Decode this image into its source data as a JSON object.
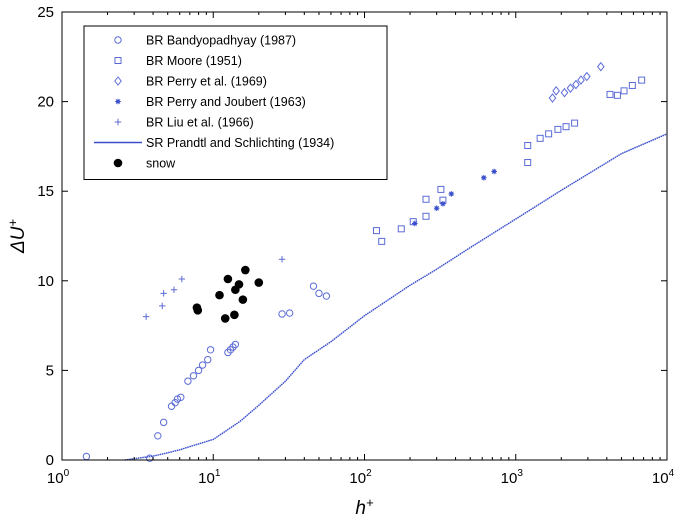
{
  "chart_data": {
    "type": "scatter",
    "xscale": "log",
    "xlim": [
      1,
      10000
    ],
    "ylim": [
      0,
      25
    ],
    "x_ticks": [
      1,
      10,
      100,
      1000,
      10000
    ],
    "x_tick_labels": [
      {
        "base": "10",
        "exp": "0"
      },
      {
        "base": "10",
        "exp": "1"
      },
      {
        "base": "10",
        "exp": "2"
      },
      {
        "base": "10",
        "exp": "3"
      },
      {
        "base": "10",
        "exp": "4"
      }
    ],
    "y_ticks": [
      0,
      5,
      10,
      15,
      20,
      25
    ],
    "y_tick_labels": [
      "0",
      "5",
      "10",
      "15",
      "20",
      "25"
    ],
    "xlabel": {
      "base": "h",
      "sup": "+"
    },
    "ylabel": {
      "base": "ΔU",
      "sup": "+"
    },
    "grid": false,
    "legend_position": "top-left",
    "series": [
      {
        "name": "BR Bandyopadhyay (1987)",
        "marker": "circle-open",
        "color": "#5b6bd6",
        "points": [
          [
            1.45,
            0.2
          ],
          [
            3.8,
            0.1
          ],
          [
            4.3,
            1.35
          ],
          [
            4.7,
            2.1
          ],
          [
            5.3,
            3.0
          ],
          [
            5.6,
            3.2
          ],
          [
            5.8,
            3.4
          ],
          [
            6.1,
            3.5
          ],
          [
            6.8,
            4.4
          ],
          [
            7.4,
            4.7
          ],
          [
            8.0,
            5.0
          ],
          [
            8.5,
            5.3
          ],
          [
            9.2,
            5.6
          ],
          [
            9.6,
            6.15
          ],
          [
            12.5,
            6.0
          ],
          [
            13.0,
            6.15
          ],
          [
            13.5,
            6.3
          ],
          [
            14.0,
            6.45
          ],
          [
            28.5,
            8.15
          ],
          [
            32.0,
            8.2
          ],
          [
            46.0,
            9.7
          ],
          [
            50.0,
            9.3
          ],
          [
            56.0,
            9.15
          ]
        ]
      },
      {
        "name": "BR Moore (1951)",
        "marker": "square-open",
        "color": "#5b6bd6",
        "points": [
          [
            120,
            12.8
          ],
          [
            130,
            12.2
          ],
          [
            175,
            12.9
          ],
          [
            210,
            13.3
          ],
          [
            255,
            14.55
          ],
          [
            255,
            13.6
          ],
          [
            320,
            15.1
          ],
          [
            330,
            14.5
          ],
          [
            1200,
            17.55
          ],
          [
            1200,
            16.6
          ],
          [
            1450,
            17.95
          ],
          [
            1650,
            18.2
          ],
          [
            1900,
            18.45
          ],
          [
            2150,
            18.6
          ],
          [
            2450,
            18.8
          ],
          [
            4200,
            20.4
          ],
          [
            4700,
            20.35
          ],
          [
            5200,
            20.6
          ],
          [
            5900,
            20.9
          ],
          [
            6800,
            21.2
          ]
        ]
      },
      {
        "name": "BR Perry et al. (1969)",
        "marker": "diamond-open",
        "color": "#5b6bd6",
        "points": [
          [
            1750,
            20.2
          ],
          [
            1850,
            20.6
          ],
          [
            2100,
            20.5
          ],
          [
            2300,
            20.75
          ],
          [
            2500,
            20.95
          ],
          [
            2700,
            21.2
          ],
          [
            2950,
            21.4
          ],
          [
            3650,
            21.95
          ]
        ]
      },
      {
        "name": "BR Perry and Joubert (1963)",
        "marker": "asterisk",
        "color": "#3a4fcc",
        "points": [
          [
            215,
            13.2
          ],
          [
            300,
            14.05
          ],
          [
            330,
            14.3
          ],
          [
            375,
            14.85
          ],
          [
            615,
            15.75
          ],
          [
            720,
            16.1
          ]
        ]
      },
      {
        "name": "BR Liu et al. (1966)",
        "marker": "plus",
        "color": "#5b6bd6",
        "points": [
          [
            3.6,
            8.0
          ],
          [
            4.6,
            8.6
          ],
          [
            4.7,
            9.3
          ],
          [
            5.5,
            9.5
          ],
          [
            6.2,
            10.1
          ],
          [
            28.5,
            11.2
          ]
        ]
      },
      {
        "name": "SR Prandtl and Schlichting (1934)",
        "marker": "line",
        "color": "#3a4fcc",
        "points": [
          [
            2.6,
            0.0
          ],
          [
            4.0,
            0.22
          ],
          [
            5.0,
            0.4
          ],
          [
            6.0,
            0.57
          ],
          [
            7.0,
            0.75
          ],
          [
            10.0,
            1.15
          ],
          [
            15.0,
            2.15
          ],
          [
            20.0,
            3.05
          ],
          [
            30.0,
            4.4
          ],
          [
            40.0,
            5.6
          ],
          [
            60.0,
            6.6
          ],
          [
            100.0,
            8.05
          ],
          [
            200.0,
            9.75
          ],
          [
            300.0,
            10.65
          ],
          [
            500.0,
            11.85
          ],
          [
            1000.0,
            13.45
          ],
          [
            2000.0,
            15.05
          ],
          [
            5000.0,
            17.1
          ],
          [
            10000.0,
            18.2
          ]
        ]
      },
      {
        "name": "snow",
        "marker": "circle-filled",
        "color": "#000000",
        "points": [
          [
            7.8,
            8.5
          ],
          [
            7.9,
            8.35
          ],
          [
            11.0,
            9.2
          ],
          [
            12.0,
            7.9
          ],
          [
            12.5,
            10.1
          ],
          [
            13.8,
            8.1
          ],
          [
            14.0,
            9.5
          ],
          [
            14.8,
            9.8
          ],
          [
            15.7,
            8.95
          ],
          [
            16.3,
            10.6
          ],
          [
            20.0,
            9.9
          ]
        ]
      }
    ]
  }
}
